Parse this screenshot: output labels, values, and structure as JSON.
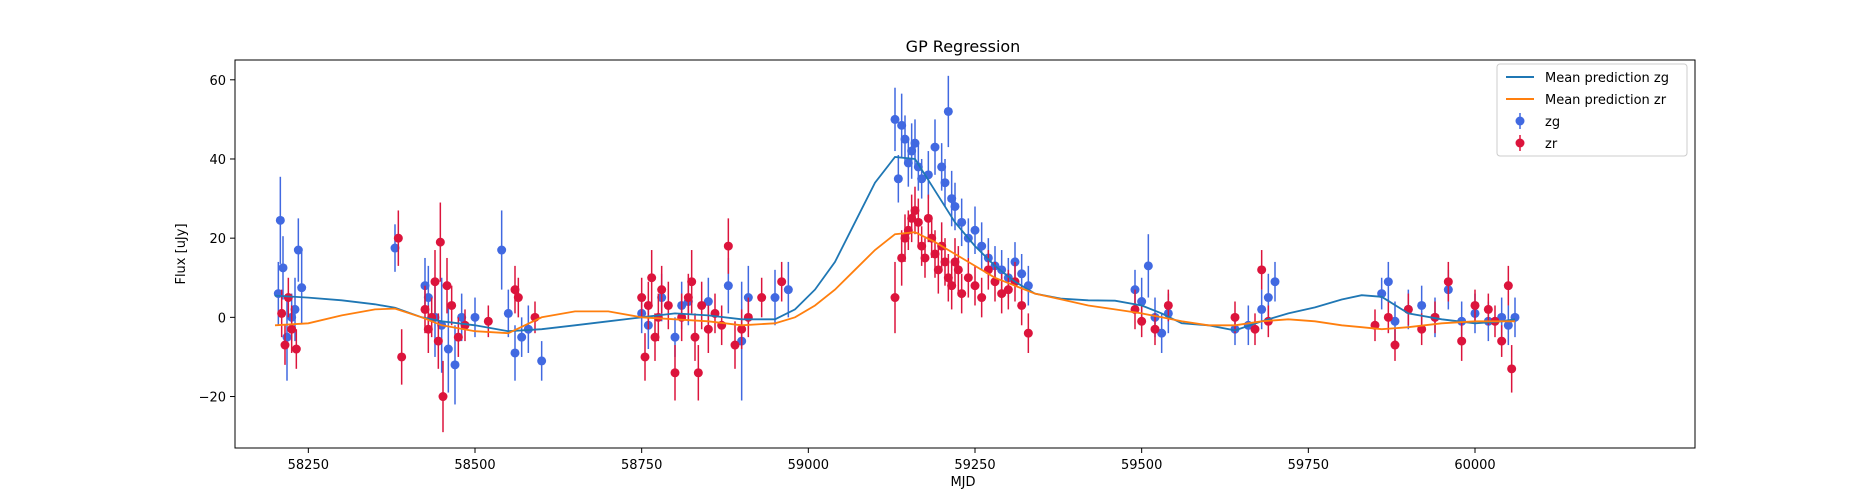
{
  "chart_data": {
    "type": "scatter",
    "title": "GP Regression",
    "xlabel": "MJD",
    "ylabel": "Flux [uJy]",
    "xlim": [
      58140,
      60330
    ],
    "ylim": [
      -33,
      65
    ],
    "xticks": [
      58250,
      58500,
      58750,
      59000,
      59250,
      59500,
      59750,
      60000
    ],
    "yticks": [
      -20,
      0,
      20,
      40,
      60
    ],
    "grid": false,
    "legend": {
      "placement": "top-right",
      "entries": [
        "Mean prediction zg",
        "Mean prediction zr",
        "zg",
        "zr"
      ]
    },
    "series": [
      {
        "name": "Mean prediction zg",
        "kind": "line",
        "color": "#1f77b4",
        "x": [
          58200,
          58250,
          58300,
          58350,
          58380,
          58420,
          58450,
          58500,
          58550,
          58600,
          58650,
          58700,
          58750,
          58800,
          58850,
          58900,
          58950,
          58980,
          59010,
          59040,
          59070,
          59100,
          59130,
          59160,
          59190,
          59220,
          59250,
          59280,
          59310,
          59340,
          59380,
          59420,
          59460,
          59500,
          59530,
          59560,
          59600,
          59640,
          59680,
          59720,
          59760,
          59800,
          59830,
          59860,
          59900,
          59950,
          60000,
          60040,
          60060
        ],
        "y": [
          5.5,
          5,
          4.3,
          3.3,
          2.4,
          0,
          -1,
          -2,
          -3.5,
          -3,
          -2,
          -1,
          0,
          1,
          0.5,
          -0.5,
          -0.5,
          2,
          7,
          14,
          24,
          34,
          40.5,
          40,
          32,
          24,
          18,
          13,
          9,
          6,
          4.7,
          4.3,
          4.2,
          3,
          1,
          -1.5,
          -2,
          -3.3,
          -1,
          1,
          2.5,
          4.5,
          5.6,
          5.2,
          1,
          -0.5,
          -1.5,
          -1,
          -0.5
        ]
      },
      {
        "name": "Mean prediction zr",
        "kind": "line",
        "color": "#ff7f0e",
        "x": [
          58200,
          58250,
          58300,
          58350,
          58380,
          58420,
          58450,
          58500,
          58550,
          58600,
          58650,
          58700,
          58750,
          58800,
          58850,
          58900,
          58950,
          58980,
          59010,
          59040,
          59070,
          59100,
          59130,
          59160,
          59190,
          59220,
          59250,
          59280,
          59310,
          59340,
          59380,
          59420,
          59460,
          59500,
          59530,
          59560,
          59600,
          59640,
          59680,
          59720,
          59760,
          59800,
          59830,
          59860,
          59900,
          59950,
          60000,
          60040,
          60060
        ],
        "y": [
          -2,
          -1.5,
          0.5,
          2,
          2.2,
          0,
          -2,
          -3.5,
          -4,
          0,
          1.5,
          1.5,
          0,
          -0.5,
          -1,
          -2,
          -1.5,
          0,
          3,
          7,
          12,
          17,
          21,
          21.5,
          19,
          16,
          13,
          10,
          8,
          6,
          4.5,
          3,
          2,
          1,
          0,
          -1,
          -2,
          -2,
          -1,
          -0.5,
          -1,
          -2,
          -2.5,
          -3,
          -2.5,
          -1.5,
          -1,
          -1,
          -1
        ]
      },
      {
        "name": "zg",
        "kind": "errorbar",
        "color": "#4169e1",
        "x": [
          58205,
          58208,
          58212,
          58218,
          58225,
          58230,
          58235,
          58240,
          58380,
          58425,
          58430,
          58440,
          58450,
          58460,
          58470,
          58480,
          58500,
          58540,
          58550,
          58560,
          58570,
          58580,
          58600,
          58750,
          58760,
          58780,
          58800,
          58810,
          58820,
          58850,
          58880,
          58900,
          58910,
          58950,
          58970,
          59130,
          59135,
          59140,
          59145,
          59150,
          59155,
          59160,
          59165,
          59170,
          59180,
          59190,
          59200,
          59205,
          59210,
          59215,
          59220,
          59230,
          59240,
          59250,
          59260,
          59270,
          59280,
          59290,
          59300,
          59310,
          59320,
          59330,
          59490,
          59500,
          59510,
          59520,
          59530,
          59540,
          59640,
          59660,
          59680,
          59690,
          59700,
          59860,
          59870,
          59880,
          59900,
          59920,
          59940,
          59960,
          59980,
          60000,
          60020,
          60040,
          60050,
          60060
        ],
        "y": [
          6,
          24.5,
          12.5,
          -5,
          0,
          2,
          17,
          7.5,
          17.5,
          8,
          5,
          0,
          -2,
          -8,
          -12,
          0,
          0,
          17,
          1,
          -9,
          -5,
          -3,
          -11,
          1,
          -2,
          5,
          -5,
          3,
          4,
          4,
          8,
          -6,
          5,
          5,
          7,
          50,
          35,
          48.5,
          45,
          39,
          42,
          44,
          38,
          35,
          36,
          43,
          38,
          34,
          52,
          30,
          28,
          24,
          20,
          22,
          18,
          15,
          13,
          12,
          10,
          14,
          11,
          8,
          7,
          4,
          13,
          0,
          -4,
          1,
          -3,
          -2,
          2,
          5,
          9,
          6,
          9,
          -1,
          2,
          3,
          0,
          7,
          -1,
          1,
          -1,
          0,
          -2,
          0
        ],
        "err": [
          8,
          11,
          8,
          11,
          6,
          8,
          8,
          9,
          6,
          7,
          8,
          10,
          12,
          11,
          10,
          6,
          5,
          10,
          6,
          7,
          5,
          6,
          5,
          5,
          6,
          6,
          5,
          6,
          6,
          6,
          7,
          15,
          8,
          7,
          7,
          8,
          6,
          8,
          6,
          6,
          7,
          6,
          6,
          5,
          6,
          7,
          6,
          6,
          9,
          7,
          6,
          6,
          5,
          6,
          6,
          5,
          5,
          5,
          5,
          5,
          5,
          5,
          5,
          6,
          8,
          5,
          5,
          5,
          4,
          5,
          5,
          6,
          5,
          4,
          5,
          5,
          5,
          5,
          5,
          5,
          5,
          5,
          5,
          5,
          5,
          5
        ]
      },
      {
        "name": "zr",
        "kind": "errorbar",
        "color": "#dc143c",
        "x": [
          58210,
          58215,
          58220,
          58225,
          58232,
          58385,
          58390,
          58425,
          58430,
          58435,
          58440,
          58445,
          58448,
          58452,
          58458,
          58465,
          58475,
          58485,
          58520,
          58560,
          58565,
          58590,
          58750,
          58755,
          58760,
          58765,
          58770,
          58775,
          58780,
          58790,
          58800,
          58810,
          58820,
          58825,
          58830,
          58835,
          58840,
          58850,
          58860,
          58870,
          58880,
          58890,
          58900,
          58910,
          58930,
          58960,
          59130,
          59140,
          59145,
          59150,
          59155,
          59160,
          59165,
          59170,
          59175,
          59180,
          59185,
          59190,
          59195,
          59200,
          59205,
          59210,
          59215,
          59220,
          59225,
          59230,
          59240,
          59250,
          59260,
          59270,
          59280,
          59290,
          59300,
          59310,
          59320,
          59330,
          59490,
          59500,
          59520,
          59540,
          59640,
          59670,
          59680,
          59690,
          59850,
          59870,
          59880,
          59900,
          59920,
          59940,
          59960,
          59980,
          60000,
          60020,
          60030,
          60040,
          60050,
          60055
        ],
        "y": [
          1,
          -7,
          5,
          -3,
          -8,
          20,
          -10,
          2,
          -3,
          0,
          9,
          -6,
          19,
          -20,
          8,
          3,
          -5,
          -2,
          -1,
          7,
          5,
          0,
          5,
          -10,
          3,
          10,
          -5,
          0,
          7,
          3,
          -14,
          0,
          5,
          9,
          -5,
          -14,
          3,
          -3,
          1,
          -2,
          18,
          -7,
          -3,
          0,
          5,
          9,
          5,
          15,
          20,
          22,
          25,
          27,
          24,
          18,
          15,
          25,
          20,
          16,
          12,
          18,
          14,
          10,
          8,
          14,
          12,
          6,
          10,
          8,
          5,
          12,
          9,
          6,
          7,
          9,
          3,
          -4,
          2,
          -1,
          -3,
          3,
          0,
          -3,
          12,
          -1,
          -2,
          0,
          -7,
          2,
          -3,
          0,
          9,
          -6,
          3,
          2,
          -1,
          -6,
          8,
          -13
        ],
        "err": [
          6,
          5,
          5,
          6,
          5,
          7,
          7,
          6,
          6,
          5,
          8,
          7,
          10,
          9,
          7,
          5,
          5,
          4,
          4,
          6,
          5,
          4,
          5,
          6,
          6,
          7,
          6,
          6,
          6,
          6,
          7,
          6,
          6,
          8,
          6,
          7,
          6,
          6,
          5,
          5,
          7,
          6,
          5,
          5,
          5,
          5,
          9,
          7,
          6,
          5,
          6,
          6,
          6,
          5,
          5,
          6,
          5,
          6,
          6,
          6,
          6,
          6,
          6,
          6,
          6,
          5,
          5,
          5,
          5,
          5,
          5,
          5,
          5,
          5,
          5,
          5,
          5,
          4,
          4,
          4,
          4,
          4,
          5,
          4,
          4,
          4,
          4,
          4,
          4,
          4,
          5,
          5,
          4,
          4,
          4,
          4,
          5,
          6
        ]
      }
    ]
  }
}
